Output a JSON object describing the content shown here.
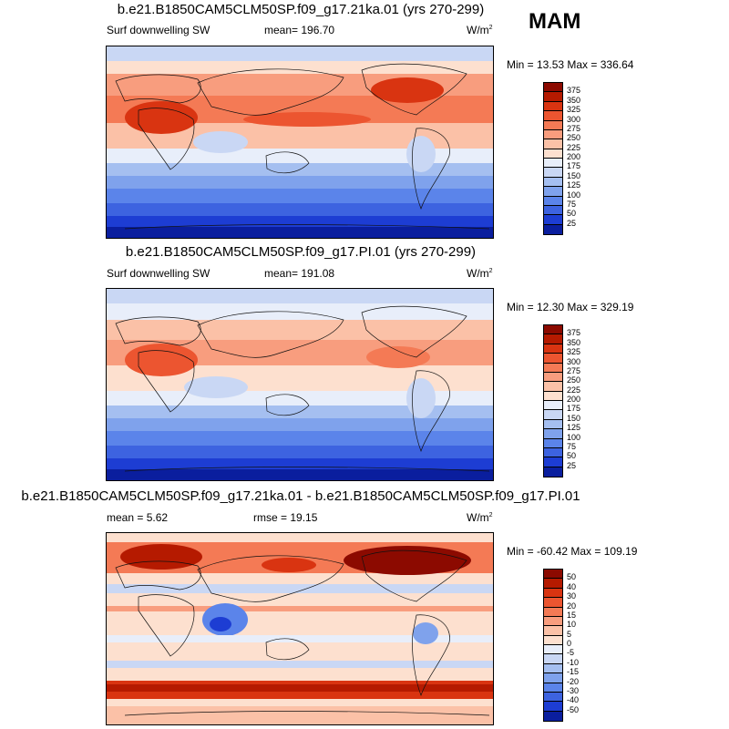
{
  "season": "MAM",
  "panels": [
    {
      "title": "b.e21.B1850CAM5CLM50SP.f09_g17.21ka.01 (yrs 270-299)",
      "left_label": "Surf downwelling SW",
      "center_label": "mean= 196.70",
      "units": "W/m",
      "units_sup": "2",
      "minmax": "Min =  13.53 Max = 336.64",
      "colorbar": {
        "ticks": [
          "375",
          "350",
          "325",
          "300",
          "275",
          "250",
          "225",
          "200",
          "175",
          "150",
          "125",
          "100",
          "75",
          "50",
          "25"
        ],
        "colors": [
          "#8c0a00",
          "#b51a00",
          "#d93411",
          "#ec5530",
          "#f47a55",
          "#f89d7e",
          "#fbc1a7",
          "#fde0cf",
          "#e8eefa",
          "#c9d7f4",
          "#a5bff0",
          "#7fa2ec",
          "#5b84ea",
          "#3d63e0",
          "#1d3dd3",
          "#0a1e9e"
        ]
      }
    },
    {
      "title": "b.e21.B1850CAM5CLM50SP.f09_g17.PI.01 (yrs 270-299)",
      "left_label": "Surf downwelling SW",
      "center_label": "mean= 191.08",
      "units": "W/m",
      "units_sup": "2",
      "minmax": "Min =  12.30 Max = 329.19",
      "colorbar": {
        "ticks": [
          "375",
          "350",
          "325",
          "300",
          "275",
          "250",
          "225",
          "200",
          "175",
          "150",
          "125",
          "100",
          "75",
          "50",
          "25"
        ],
        "colors": [
          "#8c0a00",
          "#b51a00",
          "#d93411",
          "#ec5530",
          "#f47a55",
          "#f89d7e",
          "#fbc1a7",
          "#fde0cf",
          "#e8eefa",
          "#c9d7f4",
          "#a5bff0",
          "#7fa2ec",
          "#5b84ea",
          "#3d63e0",
          "#1d3dd3",
          "#0a1e9e"
        ]
      }
    },
    {
      "title": "b.e21.B1850CAM5CLM50SP.f09_g17.21ka.01 - b.e21.B1850CAM5CLM50SP.f09_g17.PI.01",
      "left_label": "mean =   5.62",
      "center_label": "rmse =  19.15",
      "units": "W/m",
      "units_sup": "2",
      "minmax": "Min = -60.42 Max = 109.19",
      "colorbar": {
        "ticks": [
          "50",
          "40",
          "30",
          "20",
          "15",
          "10",
          "5",
          "0",
          "-5",
          "-10",
          "-15",
          "-20",
          "-30",
          "-40",
          "-50"
        ],
        "colors": [
          "#8c0a00",
          "#b51a00",
          "#d93411",
          "#ec5530",
          "#f47a55",
          "#f89d7e",
          "#fbc1a7",
          "#fde0cf",
          "#e8eefa",
          "#c9d7f4",
          "#a5bff0",
          "#7fa2ec",
          "#5b84ea",
          "#3d63e0",
          "#1d3dd3",
          "#0a1e9e"
        ]
      }
    }
  ]
}
